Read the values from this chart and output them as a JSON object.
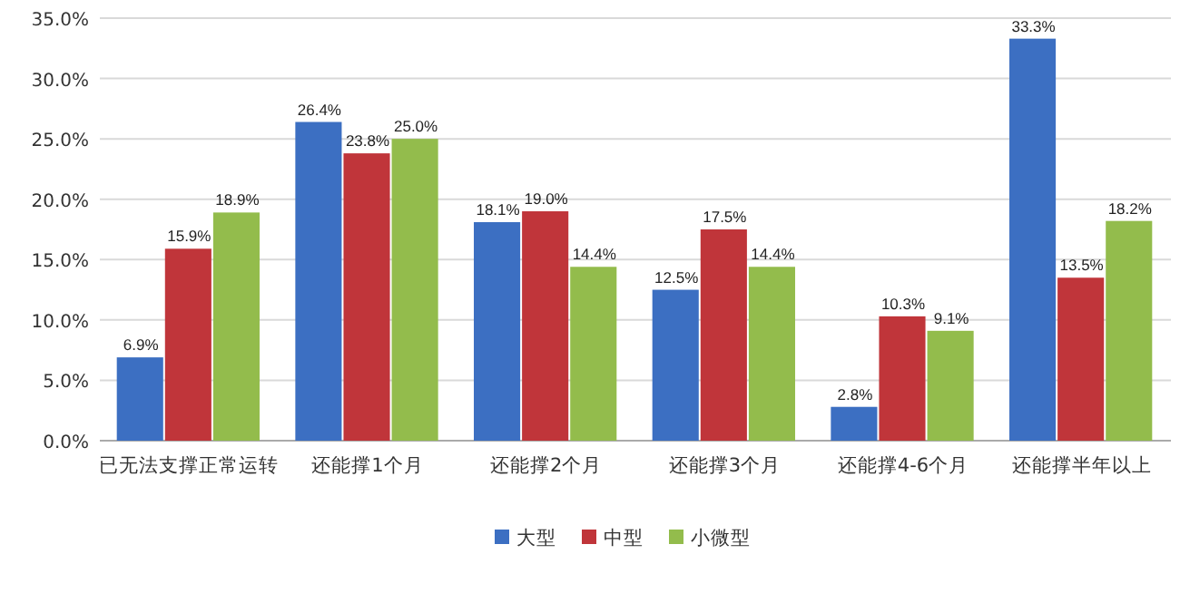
{
  "chart_data": {
    "type": "bar",
    "categories": [
      "已无法支撑正常运转",
      "还能撑1个月",
      "还能撑2个月",
      "还能撑3个月",
      "还能撑4-6个月",
      "还能撑半年以上"
    ],
    "series": [
      {
        "name": "大型",
        "color": "#3c6fc2",
        "values": [
          6.9,
          26.4,
          18.1,
          12.5,
          2.8,
          33.3
        ],
        "value_labels": [
          "6.9%",
          "26.4%",
          "18.1%",
          "12.5%",
          "2.8%",
          "33.3%"
        ]
      },
      {
        "name": "中型",
        "color": "#c0353a",
        "values": [
          15.9,
          23.8,
          19.0,
          17.5,
          10.3,
          13.5
        ],
        "value_labels": [
          "15.9%",
          "23.8%",
          "19.0%",
          "17.5%",
          "10.3%",
          "13.5%"
        ]
      },
      {
        "name": "小微型",
        "color": "#93bc4c",
        "values": [
          18.9,
          25.0,
          14.4,
          14.4,
          9.1,
          18.2
        ],
        "value_labels": [
          "18.9%",
          "25.0%",
          "14.4%",
          "14.4%",
          "9.1%",
          "18.2%"
        ]
      }
    ],
    "ylim": [
      0,
      35
    ],
    "yticks": [
      {
        "value": 0,
        "label": "0.0%"
      },
      {
        "value": 5,
        "label": "5.0%"
      },
      {
        "value": 10,
        "label": "10.0%"
      },
      {
        "value": 15,
        "label": "15.0%"
      },
      {
        "value": 20,
        "label": "20.0%"
      },
      {
        "value": 25,
        "label": "25.0%"
      },
      {
        "value": 30,
        "label": "30.0%"
      },
      {
        "value": 35,
        "label": "35.0%"
      }
    ],
    "grid": "y",
    "legend": "bottom"
  }
}
